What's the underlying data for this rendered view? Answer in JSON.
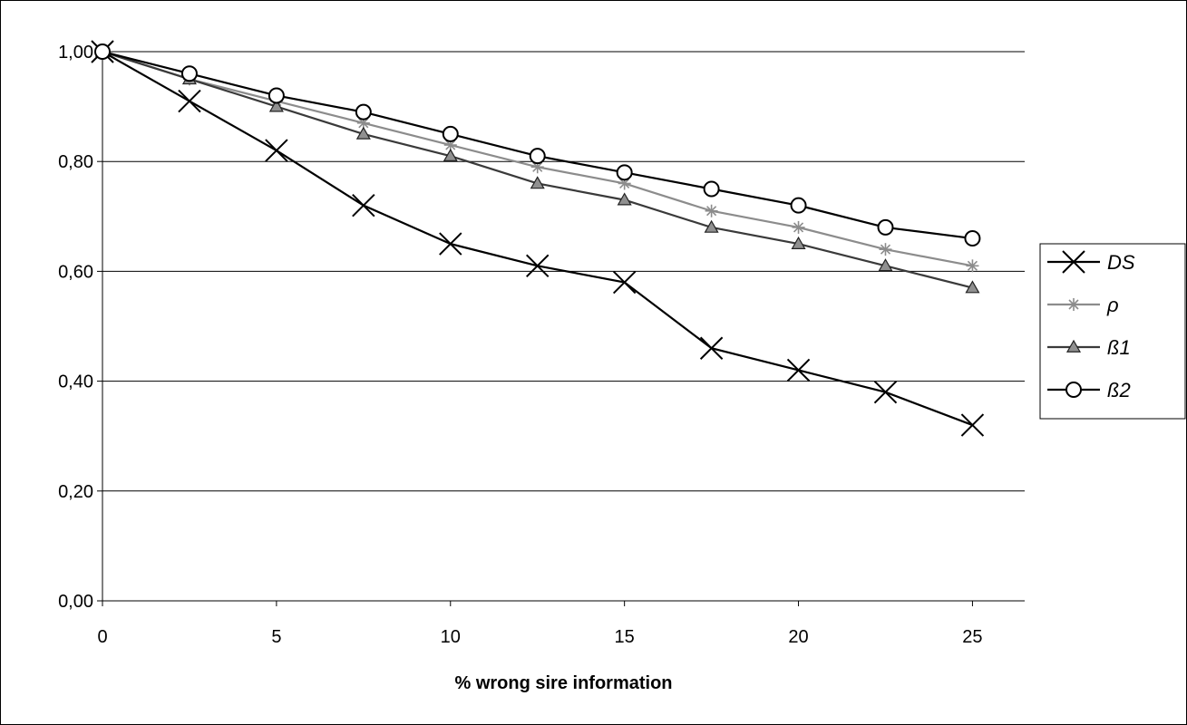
{
  "chart_data": {
    "type": "line",
    "title": "",
    "xlabel": "% wrong sire information",
    "ylabel": "",
    "x": [
      0,
      2.5,
      5,
      7.5,
      10,
      12.5,
      15,
      17.5,
      20,
      22.5,
      25
    ],
    "xlim": [
      0,
      26.5
    ],
    "ylim": [
      0,
      1.0
    ],
    "x_ticks": [
      0,
      5,
      10,
      15,
      20,
      25
    ],
    "x_tick_labels": [
      "0",
      "5",
      "10",
      "15",
      "20",
      "25"
    ],
    "y_ticks": [
      0,
      0.2,
      0.4,
      0.6,
      0.8,
      1.0
    ],
    "y_tick_labels": [
      "0,00",
      "0,20",
      "0,40",
      "0,60",
      "0,80",
      "1,00"
    ],
    "grid": "horizontal",
    "legend_position": "right",
    "series": [
      {
        "name": "DS",
        "marker": "x",
        "color": "#000000",
        "values": [
          1.0,
          0.91,
          0.82,
          0.72,
          0.65,
          0.61,
          0.58,
          0.46,
          0.42,
          0.38,
          0.32
        ]
      },
      {
        "name": "ρ",
        "marker": "star",
        "color": "#8c8c8c",
        "values": [
          1.0,
          0.95,
          0.91,
          0.87,
          0.83,
          0.79,
          0.76,
          0.71,
          0.68,
          0.64,
          0.61
        ]
      },
      {
        "name": "ß1",
        "marker": "triangle",
        "color": "#3a3a3a",
        "values": [
          1.0,
          0.95,
          0.9,
          0.85,
          0.81,
          0.76,
          0.73,
          0.68,
          0.65,
          0.61,
          0.57
        ]
      },
      {
        "name": "ß2",
        "marker": "circle",
        "color": "#000000",
        "values": [
          1.0,
          0.96,
          0.92,
          0.89,
          0.85,
          0.81,
          0.78,
          0.75,
          0.72,
          0.68,
          0.66
        ]
      }
    ]
  }
}
